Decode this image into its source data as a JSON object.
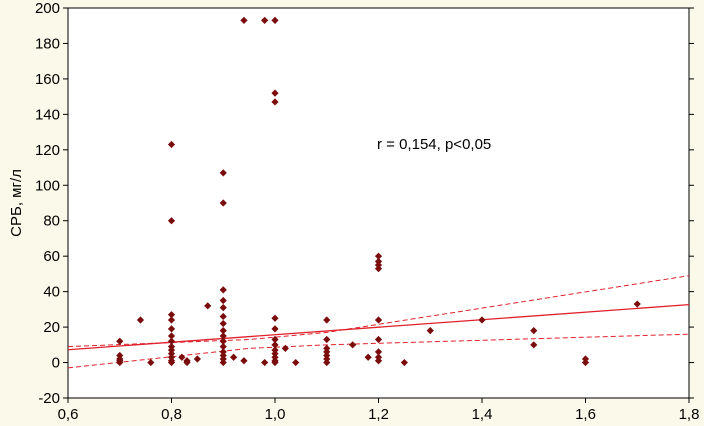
{
  "chart_data": {
    "type": "scatter",
    "title": "",
    "xlabel": "",
    "ylabel": "СРБ, мг/л",
    "xlim": [
      0.6,
      1.8
    ],
    "ylim": [
      -20,
      200
    ],
    "xticks": [
      "0,6",
      "0,8",
      "1,0",
      "1,2",
      "1,4",
      "1,6",
      "1,8"
    ],
    "xtick_values": [
      0.6,
      0.8,
      1.0,
      1.2,
      1.4,
      1.6,
      1.8
    ],
    "yticks": [
      "-20",
      "0",
      "20",
      "40",
      "60",
      "80",
      "100",
      "120",
      "140",
      "160",
      "180",
      "200"
    ],
    "ytick_values": [
      -20,
      0,
      20,
      40,
      60,
      80,
      100,
      120,
      140,
      160,
      180,
      200
    ],
    "annotation": "r = 0,154, p<0,05",
    "grid": false,
    "regression": {
      "intercept": -5.5,
      "slope": 21.2
    },
    "confidence_band": {
      "upper": [
        [
          0.6,
          9
        ],
        [
          0.95,
          13
        ],
        [
          1.1,
          17
        ],
        [
          1.8,
          49
        ]
      ],
      "lower": [
        [
          0.6,
          -3
        ],
        [
          0.95,
          8
        ],
        [
          1.1,
          10
        ],
        [
          1.8,
          16
        ]
      ]
    },
    "colors": {
      "marker": "#7a0c0c",
      "line": "#e0202a",
      "background": "#fbfaea",
      "plot_background": "#ffffff"
    },
    "points": [
      [
        0.7,
        12
      ],
      [
        0.7,
        4
      ],
      [
        0.7,
        2
      ],
      [
        0.7,
        1
      ],
      [
        0.7,
        0
      ],
      [
        0.74,
        24
      ],
      [
        0.76,
        0
      ],
      [
        0.8,
        123
      ],
      [
        0.8,
        80
      ],
      [
        0.8,
        27
      ],
      [
        0.8,
        24
      ],
      [
        0.8,
        19
      ],
      [
        0.8,
        15
      ],
      [
        0.8,
        12
      ],
      [
        0.8,
        9
      ],
      [
        0.8,
        7
      ],
      [
        0.8,
        5
      ],
      [
        0.8,
        3
      ],
      [
        0.8,
        1
      ],
      [
        0.8,
        0
      ],
      [
        0.82,
        3
      ],
      [
        0.83,
        1
      ],
      [
        0.83,
        0
      ],
      [
        0.85,
        2
      ],
      [
        0.87,
        32
      ],
      [
        0.9,
        107
      ],
      [
        0.9,
        90
      ],
      [
        0.9,
        41
      ],
      [
        0.9,
        35
      ],
      [
        0.9,
        31
      ],
      [
        0.9,
        26
      ],
      [
        0.9,
        22
      ],
      [
        0.9,
        18
      ],
      [
        0.9,
        15
      ],
      [
        0.9,
        12
      ],
      [
        0.9,
        9
      ],
      [
        0.9,
        6
      ],
      [
        0.9,
        4
      ],
      [
        0.9,
        2
      ],
      [
        0.9,
        0
      ],
      [
        0.92,
        3
      ],
      [
        0.94,
        1
      ],
      [
        0.94,
        193
      ],
      [
        0.98,
        193
      ],
      [
        1.0,
        193
      ],
      [
        1.0,
        152
      ],
      [
        1.0,
        147
      ],
      [
        1.0,
        25
      ],
      [
        1.0,
        19
      ],
      [
        1.0,
        13
      ],
      [
        1.0,
        10
      ],
      [
        1.0,
        7
      ],
      [
        1.0,
        5
      ],
      [
        1.0,
        3
      ],
      [
        1.0,
        1
      ],
      [
        1.0,
        0
      ],
      [
        0.98,
        0
      ],
      [
        1.02,
        8
      ],
      [
        1.04,
        0
      ],
      [
        1.1,
        24
      ],
      [
        1.1,
        13
      ],
      [
        1.1,
        8
      ],
      [
        1.1,
        6
      ],
      [
        1.1,
        4
      ],
      [
        1.1,
        2
      ],
      [
        1.1,
        0
      ],
      [
        1.15,
        10
      ],
      [
        1.18,
        3
      ],
      [
        1.2,
        60
      ],
      [
        1.2,
        57
      ],
      [
        1.2,
        55
      ],
      [
        1.2,
        53
      ],
      [
        1.2,
        24
      ],
      [
        1.2,
        13
      ],
      [
        1.2,
        6
      ],
      [
        1.2,
        3
      ],
      [
        1.2,
        1
      ],
      [
        1.25,
        0
      ],
      [
        1.3,
        18
      ],
      [
        1.4,
        24
      ],
      [
        1.5,
        18
      ],
      [
        1.5,
        10
      ],
      [
        1.6,
        2
      ],
      [
        1.6,
        0
      ],
      [
        1.7,
        33
      ]
    ]
  }
}
